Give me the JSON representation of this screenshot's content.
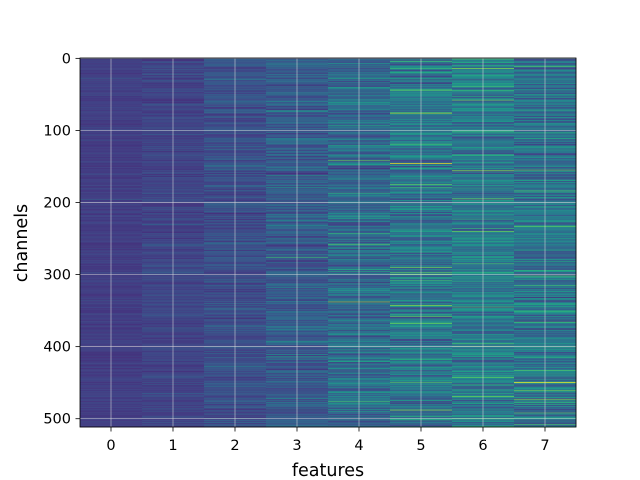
{
  "chart_data": {
    "type": "heatmap",
    "title": "",
    "xlabel": "features",
    "ylabel": "channels",
    "x_categories": [
      "0",
      "1",
      "2",
      "3",
      "4",
      "5",
      "6",
      "7"
    ],
    "y_range": [
      0,
      512
    ],
    "y_ticks": [
      "0",
      "100",
      "200",
      "300",
      "400",
      "500"
    ],
    "y_inverted": true,
    "colormap": "viridis",
    "grid": true,
    "grid_color": "#dddddd",
    "column_mean_level": [
      0.06,
      0.08,
      0.12,
      0.16,
      0.22,
      0.26,
      0.28,
      0.24
    ],
    "column_variation": [
      0.04,
      0.06,
      0.09,
      0.12,
      0.17,
      0.19,
      0.19,
      0.18
    ],
    "bright_rows": [
      {
        "feature": 3,
        "channel": 276,
        "level": 0.55
      },
      {
        "feature": 4,
        "channel": 258,
        "level": 0.6
      },
      {
        "feature": 4,
        "channel": 338,
        "level": 0.7
      },
      {
        "feature": 4,
        "channel": 476,
        "level": 0.55
      },
      {
        "feature": 5,
        "channel": 76,
        "level": 0.75
      },
      {
        "feature": 5,
        "channel": 146,
        "level": 0.85
      },
      {
        "feature": 5,
        "channel": 290,
        "level": 0.65
      },
      {
        "feature": 5,
        "channel": 343,
        "level": 0.7
      },
      {
        "feature": 5,
        "channel": 488,
        "level": 0.7
      },
      {
        "feature": 6,
        "channel": 195,
        "level": 0.65
      },
      {
        "feature": 6,
        "channel": 345,
        "level": 0.6
      },
      {
        "feature": 6,
        "channel": 400,
        "level": 0.6
      },
      {
        "feature": 7,
        "channel": 11,
        "level": 0.6
      },
      {
        "feature": 7,
        "channel": 302,
        "level": 0.6
      },
      {
        "feature": 7,
        "channel": 450,
        "level": 0.9
      }
    ]
  }
}
